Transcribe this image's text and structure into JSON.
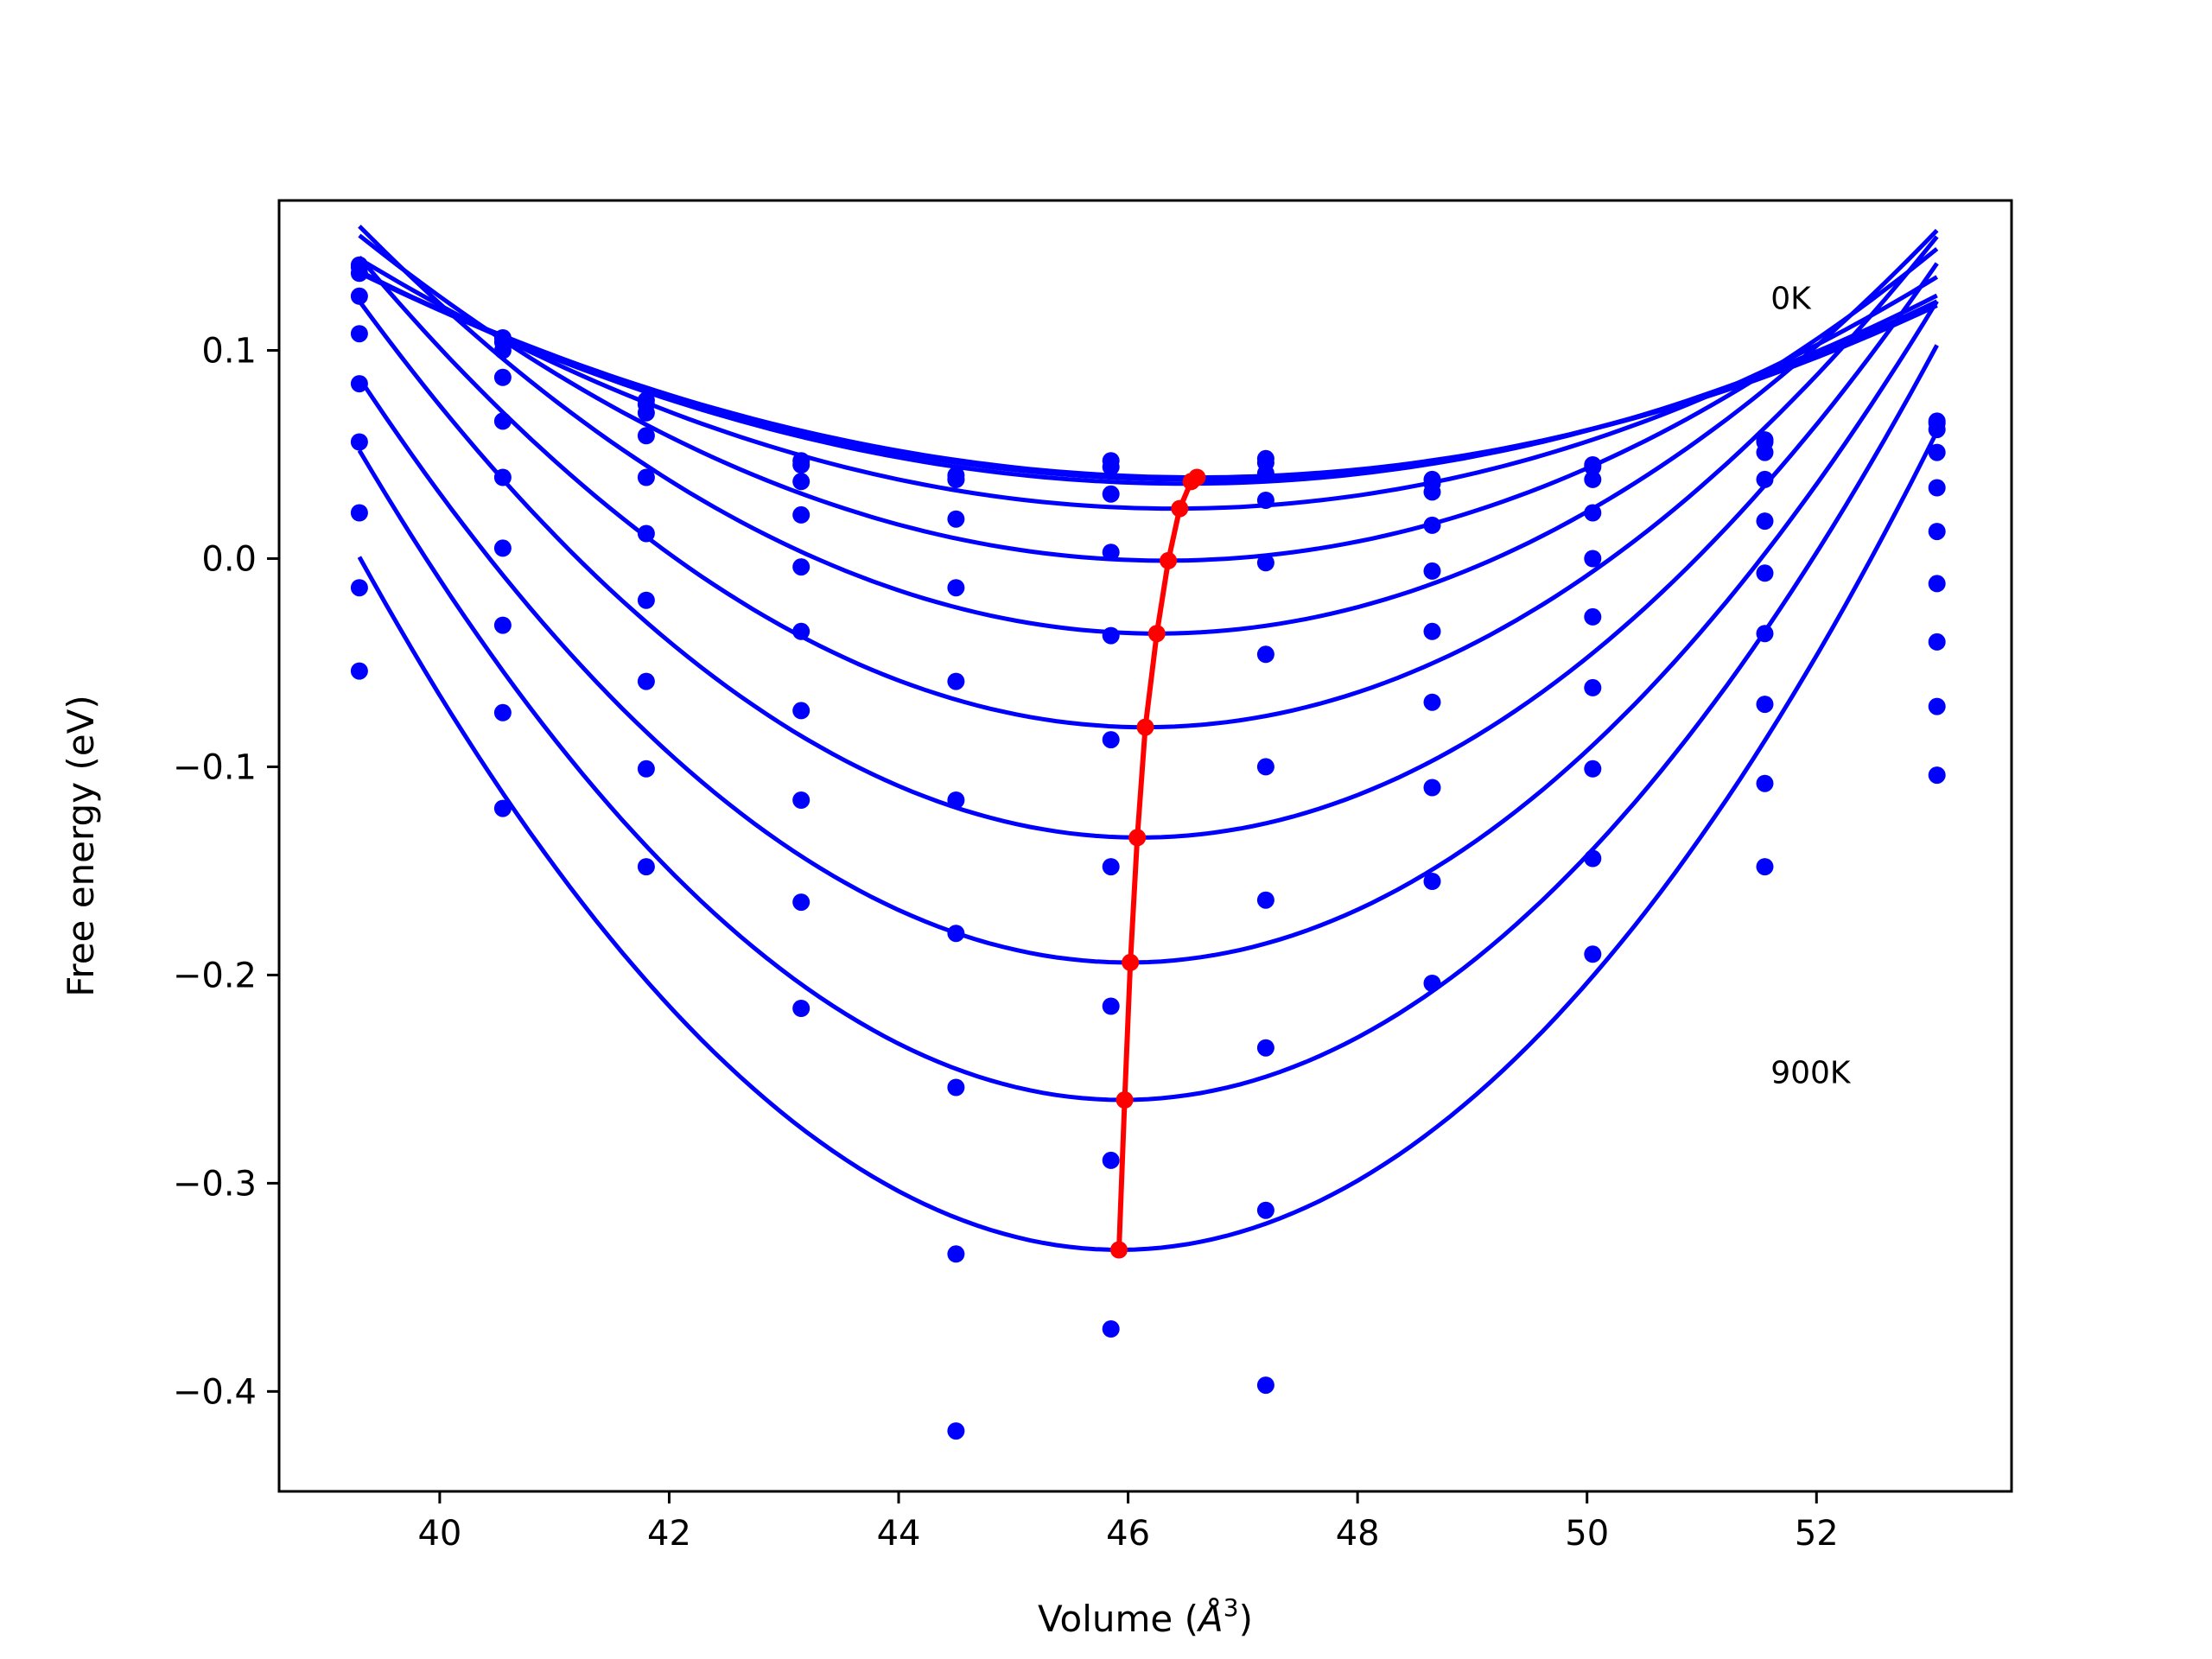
{
  "chart_data": {
    "type": "line",
    "xlabel_main": "Volume (",
    "xlabel_unit": "Å",
    "xlabel_sup": "3",
    "xlabel_close": ")",
    "ylabel": "Free energy (eV)",
    "xlim": [
      38.6,
      53.7
    ],
    "ylim": [
      -0.448,
      0.172
    ],
    "xticks": [
      40,
      42,
      44,
      46,
      48,
      50,
      52
    ],
    "yticks": [
      0.1,
      0.0,
      -0.1,
      -0.2,
      -0.3,
      -0.4
    ],
    "ytick_labels": [
      "0.1",
      "0.0",
      "−0.1",
      "−0.2",
      "−0.3",
      "−0.4"
    ],
    "annotations": [
      {
        "text": "0K",
        "x": 51.6,
        "y": 0.12
      },
      {
        "text": "900K",
        "x": 51.6,
        "y": -0.252
      }
    ],
    "colors": {
      "curves": "#0000ff",
      "minimum_line": "#ff0000"
    },
    "x_points": [
      39.3,
      40.55,
      41.8,
      43.15,
      44.5,
      45.85,
      47.2,
      48.65,
      50.05,
      51.55,
      53.05
    ],
    "fit_x_range": [
      39.3,
      53.05
    ],
    "series": [
      {
        "points": [
          0.141,
          0.106,
          0.076,
          0.047,
          0.04,
          0.047,
          0.048,
          0.038,
          0.045,
          0.057,
          0.066
        ],
        "fit": {
          "v0": 46.6,
          "f0": 0.039,
          "a": 0.00192,
          "b": 1e-05
        }
      },
      {
        "points": [
          0.14,
          0.104,
          0.074,
          0.045,
          0.038,
          0.044,
          0.046,
          0.036,
          0.044,
          0.056,
          0.065
        ],
        "fit": {
          "v0": 46.55,
          "f0": 0.038,
          "a": 0.00196,
          "b": 1e-05
        }
      },
      {
        "points": [
          0.137,
          0.1,
          0.07,
          0.037,
          0.038,
          0.031,
          0.041,
          0.032,
          0.038,
          0.051,
          0.062
        ],
        "fit": {
          "v0": 46.5,
          "f0": 0.036,
          "a": 0.00204,
          "b": 1e-05
        }
      },
      {
        "points": [
          0.126,
          0.087,
          0.059,
          0.021,
          0.019,
          0.003,
          0.028,
          0.016,
          0.022,
          0.038,
          0.051
        ],
        "fit": {
          "v0": 46.4,
          "f0": 0.024,
          "a": 0.00245,
          "b": 1e-05
        }
      },
      {
        "points": [
          0.108,
          0.066,
          0.039,
          -0.004,
          -0.014,
          -0.037,
          -0.002,
          -0.006,
          0.0,
          0.018,
          0.034
        ],
        "fit": {
          "v0": 46.32,
          "f0": -0.001,
          "a": 0.00324,
          "b": 1e-05
        }
      },
      {
        "points": [
          0.084,
          0.039,
          0.012,
          -0.035,
          -0.059,
          -0.087,
          -0.046,
          -0.035,
          -0.028,
          -0.007,
          0.013
        ],
        "fit": {
          "v0": 46.25,
          "f0": -0.036,
          "a": 0.00412,
          "b": 1e-05
        }
      },
      {
        "points": [
          0.056,
          0.005,
          -0.02,
          -0.073,
          -0.116,
          -0.148,
          -0.1,
          -0.069,
          -0.062,
          -0.036,
          -0.012
        ],
        "fit": {
          "v0": 46.15,
          "f0": -0.081,
          "a": 0.00488,
          "b": 1e-05
        }
      },
      {
        "points": [
          0.022,
          -0.032,
          -0.059,
          -0.116,
          -0.18,
          -0.215,
          -0.164,
          -0.11,
          -0.101,
          -0.07,
          -0.04
        ],
        "fit": {
          "v0": 46.1,
          "f0": -0.134,
          "a": 0.00564,
          "b": 1e-05
        }
      },
      {
        "points": [
          -0.014,
          -0.074,
          -0.101,
          -0.165,
          -0.254,
          -0.289,
          -0.235,
          -0.155,
          -0.144,
          -0.108,
          -0.071
        ],
        "fit": {
          "v0": 46.0,
          "f0": -0.194,
          "a": 0.00632,
          "b": 1e-05
        }
      },
      {
        "points": [
          -0.054,
          -0.12,
          -0.148,
          -0.216,
          -0.334,
          -0.37,
          -0.313,
          -0.204,
          -0.19,
          -0.148,
          -0.104
        ],
        "fit": {
          "v0": 45.95,
          "f0": -0.26,
          "a": 0.00712,
          "b": 1e-05
        }
      },
      {
        "points": [],
        "fit": {
          "v0": 45.92,
          "f0": -0.332,
          "a": 0.00766,
          "b": 1e-05
        }
      }
    ],
    "extra_points": [
      {
        "x": 44.5,
        "y": -0.419
      },
      {
        "x": 47.2,
        "y": -0.397
      }
    ],
    "minimum_line": {
      "x": [
        46.6,
        46.55,
        46.45,
        46.35,
        46.25,
        46.15,
        46.08,
        46.02,
        45.97,
        45.92
      ],
      "y": [
        0.039,
        0.037,
        0.024,
        -0.001,
        -0.036,
        -0.081,
        -0.134,
        -0.194,
        -0.26,
        -0.332
      ]
    }
  }
}
